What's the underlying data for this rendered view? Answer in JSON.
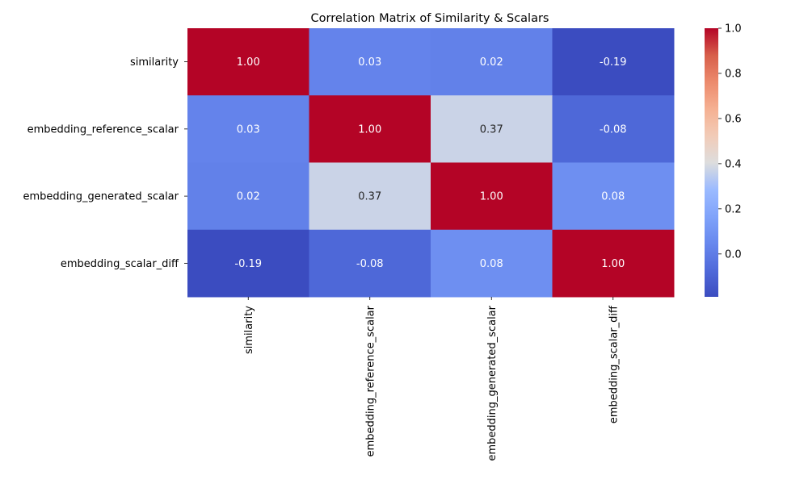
{
  "chart_data": {
    "type": "heatmap",
    "title": "Correlation Matrix of Similarity & Scalars",
    "row_labels": [
      "similarity",
      "embedding_reference_scalar",
      "embedding_generated_scalar",
      "embedding_scalar_diff"
    ],
    "col_labels": [
      "similarity",
      "embedding_reference_scalar",
      "embedding_generated_scalar",
      "embedding_scalar_diff"
    ],
    "values": [
      [
        1.0,
        0.03,
        0.02,
        -0.19
      ],
      [
        0.03,
        1.0,
        0.37,
        -0.08
      ],
      [
        0.02,
        0.37,
        1.0,
        0.08
      ],
      [
        -0.19,
        -0.08,
        0.08,
        1.0
      ]
    ],
    "annotations": [
      [
        "1.00",
        "0.03",
        "0.02",
        "-0.19"
      ],
      [
        "0.03",
        "1.00",
        "0.37",
        "-0.08"
      ],
      [
        "0.02",
        "0.37",
        "1.00",
        "0.08"
      ],
      [
        "-0.19",
        "-0.08",
        "0.08",
        "1.00"
      ]
    ],
    "colormap": "coolwarm",
    "vmin": -0.19,
    "vmax": 1.0,
    "colorbar_ticks": [
      0.0,
      0.2,
      0.4,
      0.6,
      0.8,
      1.0
    ],
    "colorbar_tick_labels": [
      "0.0",
      "0.2",
      "0.4",
      "0.6",
      "0.8",
      "1.0"
    ]
  }
}
